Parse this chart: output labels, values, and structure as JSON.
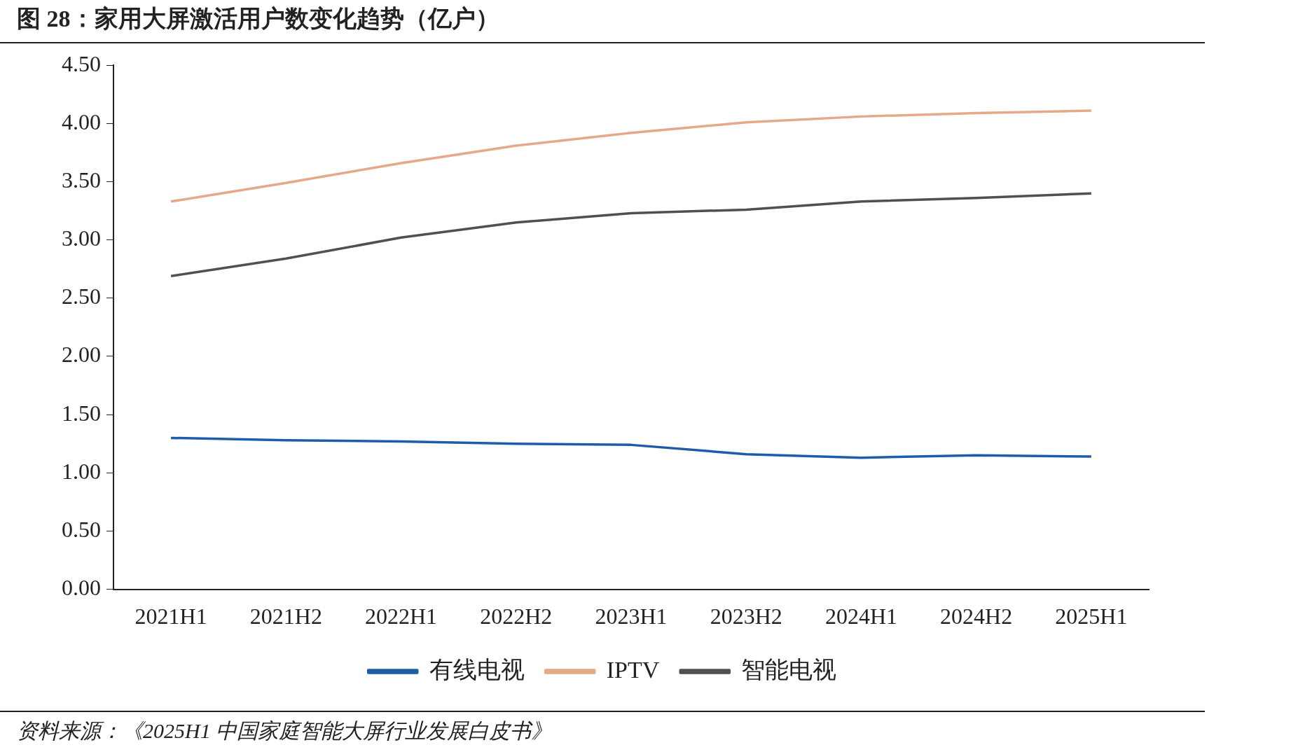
{
  "chart_data": {
    "type": "line",
    "title": "图 28：家用大屏激活用户数变化趋势（亿户）",
    "categories": [
      "2021H1",
      "2021H2",
      "2022H1",
      "2022H2",
      "2023H1",
      "2023H2",
      "2024H1",
      "2024H2",
      "2025H1"
    ],
    "series": [
      {
        "name": "有线电视",
        "color": "#1f5ca8",
        "values": [
          1.3,
          1.28,
          1.27,
          1.25,
          1.24,
          1.16,
          1.13,
          1.15,
          1.14
        ]
      },
      {
        "name": "IPTV",
        "color": "#e5a98a",
        "values": [
          3.33,
          3.49,
          3.66,
          3.81,
          3.92,
          4.01,
          4.06,
          4.09,
          4.11
        ]
      },
      {
        "name": "智能电视",
        "color": "#505050",
        "values": [
          2.69,
          2.84,
          3.02,
          3.15,
          3.23,
          3.26,
          3.33,
          3.36,
          3.4
        ]
      }
    ],
    "ylim": [
      0,
      4.5
    ],
    "yticks": [
      {
        "value": 0,
        "label": "0.00"
      },
      {
        "value": 0.5,
        "label": "0.50"
      },
      {
        "value": 1,
        "label": "1.00"
      },
      {
        "value": 1.5,
        "label": "1.50"
      },
      {
        "value": 2,
        "label": "2.00"
      },
      {
        "value": 2.5,
        "label": "2.50"
      },
      {
        "value": 3,
        "label": "3.00"
      },
      {
        "value": 3.5,
        "label": "3.50"
      },
      {
        "value": 4,
        "label": "4.00"
      },
      {
        "value": 4.5,
        "label": "4.50"
      }
    ],
    "grid": false,
    "legend": "bottom",
    "marker": "none",
    "line_style": "solid",
    "annotations": [
      "资料来源：《2025H1 中国家庭智能大屏行业发展白皮书》"
    ]
  }
}
